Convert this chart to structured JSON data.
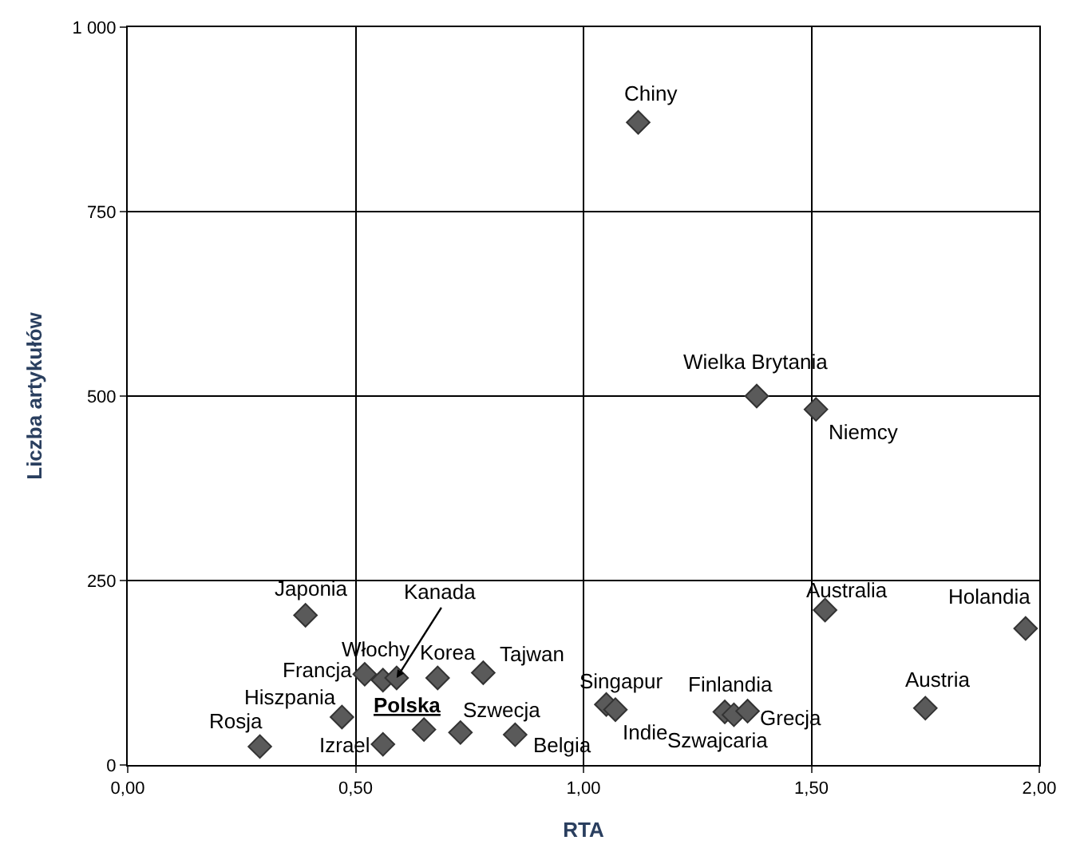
{
  "chart_data": {
    "type": "scatter",
    "xlabel": "RTA",
    "ylabel": "Liczba artykułów",
    "x": [
      1.12,
      1.38,
      1.51,
      1.53,
      1.97,
      1.75,
      1.05,
      1.07,
      1.31,
      1.33,
      1.36,
      0.39,
      0.52,
      0.56,
      0.59,
      0.68,
      0.78,
      0.47,
      0.29,
      0.56,
      0.65,
      0.73,
      0.85
    ],
    "values": [
      871,
      500,
      482,
      210,
      185,
      77,
      82,
      75,
      72,
      68,
      73,
      203,
      123,
      115,
      118,
      118,
      125,
      65,
      25,
      28,
      48,
      44,
      41
    ],
    "color": "#5a5a5a",
    "marker": "diamond",
    "grid": true,
    "xlim": [
      0,
      2
    ],
    "ylim": [
      0,
      1000
    ],
    "xticks": [
      {
        "value": 0,
        "label": "0,00"
      },
      {
        "value": 0.5,
        "label": "0,50"
      },
      {
        "value": 1,
        "label": "1,00"
      },
      {
        "value": 1.5,
        "label": "1,50"
      },
      {
        "value": 2,
        "label": "2,00"
      }
    ],
    "yticks": [
      0,
      250,
      500,
      750,
      {
        "value": 1000,
        "label": "1 000"
      }
    ],
    "annotations": [
      {
        "text": "Chiny",
        "x": 1.12,
        "y": 871
      },
      {
        "text": "Wielka Brytania",
        "x": 1.38,
        "y": 500
      },
      {
        "text": "Niemcy",
        "x": 1.51,
        "y": 482
      },
      {
        "text": "Australia",
        "x": 1.53,
        "y": 210
      },
      {
        "text": "Holandia",
        "x": 1.97,
        "y": 185
      },
      {
        "text": "Austria",
        "x": 1.75,
        "y": 77
      },
      {
        "text": "Singapur",
        "x": 1.05,
        "y": 82
      },
      {
        "text": "Indie",
        "x": 1.07,
        "y": 75
      },
      {
        "text": "Finlandia",
        "x": 1.31,
        "y": 72
      },
      {
        "text": "Szwajcaria",
        "x": 1.33,
        "y": 68
      },
      {
        "text": "Grecja",
        "x": 1.36,
        "y": 73
      },
      {
        "text": "Japonia",
        "x": 0.39,
        "y": 203
      },
      {
        "text": "Francja",
        "x": 0.52,
        "y": 123
      },
      {
        "text": "Włochy",
        "x": 0.56,
        "y": 115
      },
      {
        "text": "Kanada",
        "x": 0.59,
        "y": 118
      },
      {
        "text": "Korea",
        "x": 0.68,
        "y": 118
      },
      {
        "text": "Tajwan",
        "x": 0.78,
        "y": 125
      },
      {
        "text": "Hiszpania",
        "x": 0.47,
        "y": 65
      },
      {
        "text": "Rosja",
        "x": 0.29,
        "y": 25
      },
      {
        "text": "Izrael",
        "x": 0.56,
        "y": 28
      },
      {
        "text": "Polska",
        "x": 0.65,
        "y": 48
      },
      {
        "text": "Szwecja",
        "x": 0.73,
        "y": 44
      },
      {
        "text": "Belgia",
        "x": 0.85,
        "y": 41
      }
    ]
  }
}
